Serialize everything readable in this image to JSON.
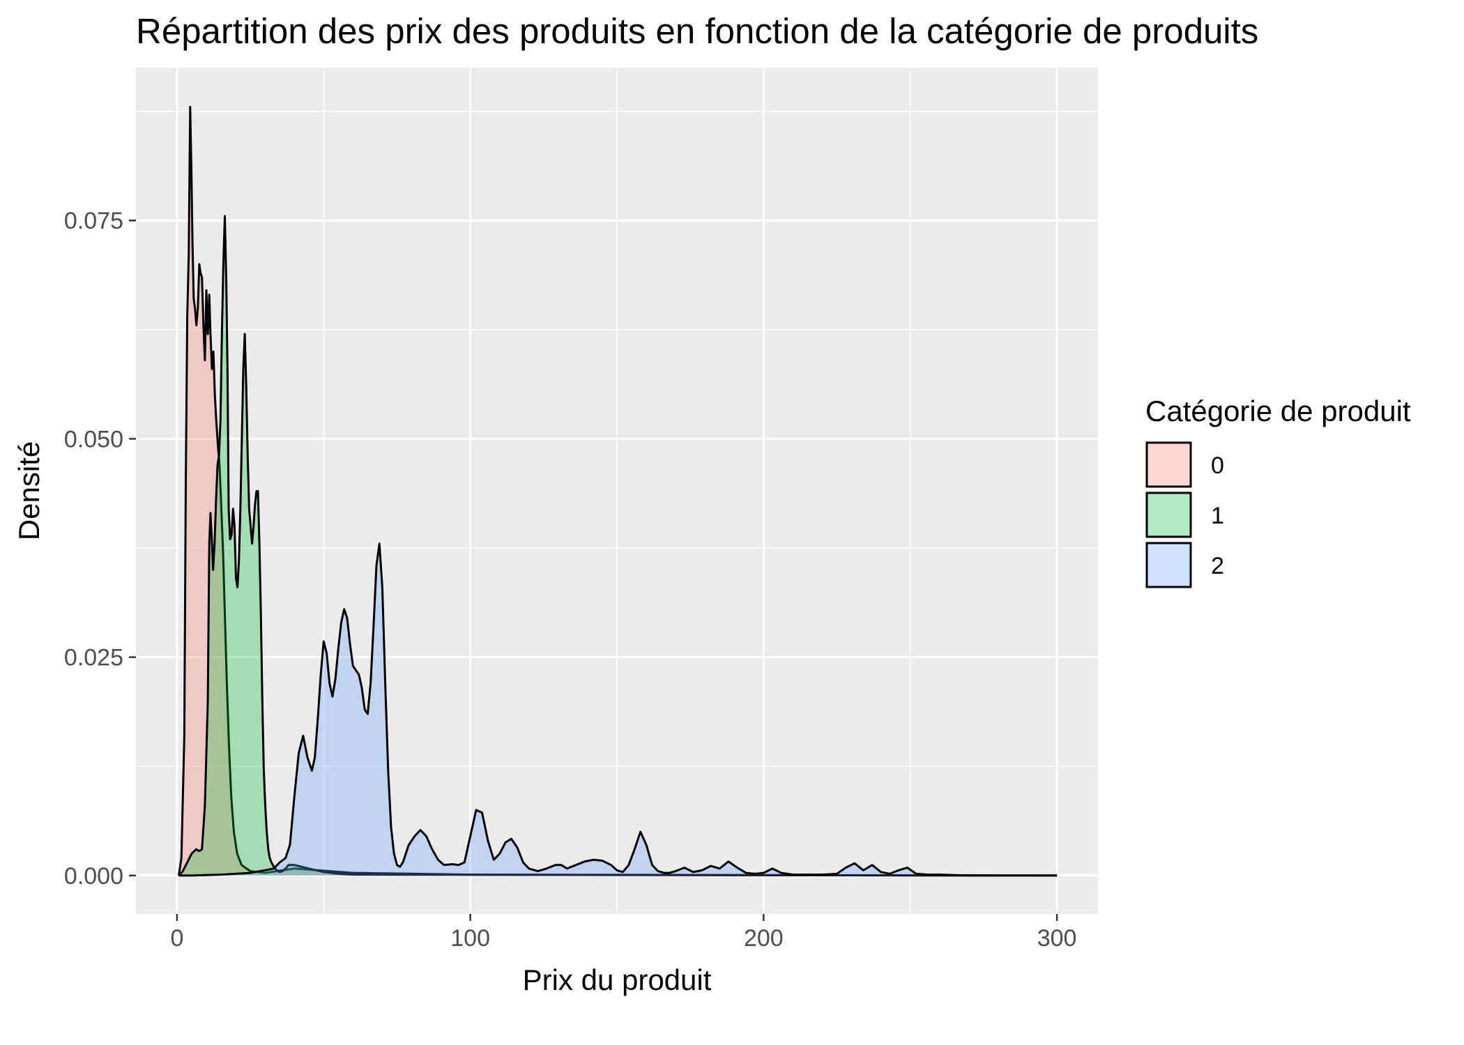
{
  "chart_data": {
    "type": "area",
    "title": "Répartition des prix des produits en fonction de la catégorie de produits",
    "xlabel": "Prix du produit",
    "ylabel": "Densité",
    "xlim": [
      -14,
      314
    ],
    "ylim": [
      -0.0044,
      0.0925
    ],
    "x_ticks": [
      0,
      100,
      200,
      300
    ],
    "x_tick_labels": [
      "0",
      "100",
      "200",
      "300"
    ],
    "y_ticks": [
      0.0,
      0.025,
      0.05,
      0.075
    ],
    "y_tick_labels": [
      "0.000",
      "0.025",
      "0.050",
      "0.075"
    ],
    "grid": true,
    "legend": {
      "title": "Catégorie de produit",
      "position": "right",
      "entries": [
        "0",
        "1",
        "2"
      ]
    },
    "colors": {
      "panel": "#ebebeb",
      "grid": "#ffffff",
      "outline": "#000000",
      "0": "#f8766d",
      "1": "#00ba38",
      "2": "#619cff"
    },
    "fill_opacity": 0.3,
    "series": [
      {
        "name": "0",
        "x": [
          0.6,
          1.5,
          2.5,
          3.0,
          3.5,
          4.0,
          4.5,
          4.9,
          5.3,
          5.7,
          6.1,
          6.6,
          7.1,
          7.6,
          8.0,
          8.5,
          9.0,
          9.5,
          10.0,
          10.5,
          11.0,
          11.4,
          11.9,
          12.4,
          12.9,
          13.4,
          14.0,
          14.5,
          15.0,
          15.7,
          16.3,
          17.0,
          17.7,
          18.5,
          19.4,
          20.5,
          22.0,
          25.0,
          30.0,
          40.0,
          60.0,
          100.0,
          300.0
        ],
        "y": [
          0.0,
          0.002,
          0.016,
          0.045,
          0.064,
          0.071,
          0.088,
          0.081,
          0.072,
          0.066,
          0.065,
          0.063,
          0.065,
          0.07,
          0.069,
          0.0685,
          0.063,
          0.059,
          0.067,
          0.062,
          0.0665,
          0.062,
          0.058,
          0.06,
          0.055,
          0.052,
          0.049,
          0.047,
          0.043,
          0.037,
          0.03,
          0.022,
          0.015,
          0.009,
          0.005,
          0.0025,
          0.0012,
          0.0005,
          0.0003,
          0.0008,
          0.0003,
          0.0001,
          0.0
        ]
      },
      {
        "name": "1",
        "x": [
          0.6,
          2.0,
          3.5,
          5.0,
          6.5,
          7.5,
          8.5,
          9.5,
          10.5,
          11.0,
          11.4,
          11.8,
          12.3,
          12.8,
          13.3,
          13.8,
          14.3,
          14.8,
          15.3,
          15.8,
          16.3,
          16.8,
          17.2,
          17.6,
          18.1,
          18.6,
          19.1,
          19.6,
          20.1,
          20.6,
          21.1,
          21.6,
          22.1,
          22.6,
          23.1,
          23.6,
          24.1,
          24.6,
          25.1,
          25.6,
          26.1,
          26.6,
          27.1,
          27.6,
          28.1,
          28.6,
          29.1,
          29.6,
          30.1,
          30.6,
          31.1,
          31.6,
          32.2,
          33.0,
          34.0,
          35.0,
          36.0,
          37.0,
          38.0,
          40.0,
          45.0,
          50.0,
          55.0,
          60.0,
          300.0
        ],
        "y": [
          0.0,
          0.0005,
          0.0015,
          0.0025,
          0.003,
          0.0028,
          0.003,
          0.008,
          0.02,
          0.038,
          0.0415,
          0.039,
          0.035,
          0.038,
          0.043,
          0.047,
          0.048,
          0.052,
          0.062,
          0.07,
          0.0755,
          0.068,
          0.058,
          0.042,
          0.0385,
          0.039,
          0.042,
          0.04,
          0.034,
          0.033,
          0.036,
          0.042,
          0.05,
          0.058,
          0.062,
          0.056,
          0.048,
          0.042,
          0.04,
          0.038,
          0.04,
          0.0425,
          0.044,
          0.044,
          0.038,
          0.03,
          0.02,
          0.012,
          0.008,
          0.005,
          0.003,
          0.002,
          0.0015,
          0.001,
          0.0006,
          0.0004,
          0.0005,
          0.0008,
          0.0012,
          0.0012,
          0.0008,
          0.0004,
          0.0002,
          0.0001,
          0.0
        ]
      },
      {
        "name": "2",
        "x": [
          0.6,
          5.0,
          15.0,
          25.0,
          30.0,
          33.0,
          35.0,
          37.0,
          38.5,
          40.0,
          41.5,
          43.0,
          44.5,
          46.0,
          47.0,
          48.0,
          49.0,
          50.0,
          51.0,
          52.0,
          53.0,
          54.0,
          55.0,
          56.0,
          57.0,
          58.0,
          59.0,
          60.0,
          61.0,
          62.0,
          63.0,
          64.0,
          65.0,
          66.0,
          67.0,
          68.0,
          69.0,
          70.0,
          71.0,
          72.0,
          73.0,
          74.0,
          75.0,
          76.0,
          77.0,
          79.0,
          81.0,
          83.0,
          85.0,
          87.0,
          89.0,
          91.0,
          94.0,
          96.0,
          98.0,
          100.0,
          102.0,
          104.0,
          106.0,
          108.0,
          110.0,
          112.0,
          114.0,
          116.0,
          118.0,
          120.0,
          123.0,
          126.0,
          129.0,
          131.0,
          133.0,
          136.0,
          139.0,
          142.0,
          145.0,
          148.0,
          150.0,
          152.0,
          154.0,
          156.0,
          158.0,
          160.0,
          162.0,
          164.0,
          166.0,
          168.0,
          170.0,
          173.0,
          176.0,
          179.0,
          182.0,
          185.0,
          188.0,
          191.0,
          194.0,
          197.0,
          200.0,
          203.0,
          206.0,
          210.0,
          215.0,
          220.0,
          225.0,
          228.0,
          231.0,
          234.0,
          237.0,
          240.0,
          243.0,
          246.0,
          249.0,
          252.0,
          256.0,
          260.0,
          270.0,
          280.0,
          300.0
        ],
        "y": [
          0.0,
          0.0,
          0.0001,
          0.0003,
          0.0006,
          0.0008,
          0.0015,
          0.002,
          0.0035,
          0.009,
          0.014,
          0.016,
          0.0135,
          0.012,
          0.0135,
          0.018,
          0.023,
          0.0268,
          0.0255,
          0.022,
          0.0205,
          0.0225,
          0.026,
          0.029,
          0.0305,
          0.0295,
          0.0265,
          0.024,
          0.0235,
          0.023,
          0.0215,
          0.019,
          0.0185,
          0.022,
          0.0285,
          0.0355,
          0.038,
          0.033,
          0.022,
          0.012,
          0.0055,
          0.0025,
          0.0012,
          0.001,
          0.0015,
          0.0035,
          0.0045,
          0.0052,
          0.0045,
          0.003,
          0.0018,
          0.0012,
          0.0013,
          0.0012,
          0.0015,
          0.0045,
          0.0075,
          0.0072,
          0.004,
          0.0018,
          0.0025,
          0.0038,
          0.0042,
          0.0032,
          0.0015,
          0.0008,
          0.0005,
          0.0008,
          0.0012,
          0.0012,
          0.0008,
          0.0012,
          0.0016,
          0.0018,
          0.0017,
          0.0012,
          0.0006,
          0.0004,
          0.0012,
          0.003,
          0.005,
          0.0035,
          0.0012,
          0.0005,
          0.0003,
          0.0003,
          0.0005,
          0.0009,
          0.0004,
          0.0006,
          0.0011,
          0.0008,
          0.0016,
          0.0009,
          0.0003,
          0.0002,
          0.0003,
          0.0008,
          0.0003,
          0.0001,
          0.0001,
          0.0001,
          0.0002,
          0.0009,
          0.0014,
          0.0006,
          0.0012,
          0.0004,
          0.0002,
          0.0006,
          0.0009,
          0.0002,
          0.0001,
          0.0001,
          0.0,
          0.0,
          0.0
        ]
      }
    ]
  }
}
